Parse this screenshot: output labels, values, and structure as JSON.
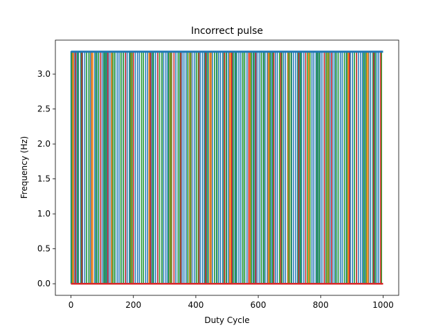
{
  "chart_data": {
    "type": "line",
    "title": "Incorrect pulse",
    "xlabel": "Duty Cycle",
    "ylabel": "Frequency (Hz)",
    "xlim": [
      -50,
      1050
    ],
    "ylim": [
      -0.166,
      3.486
    ],
    "xticks": [
      0,
      200,
      400,
      600,
      800,
      1000
    ],
    "xtick_labels": [
      "0",
      "200",
      "400",
      "600",
      "800",
      "1000"
    ],
    "yticks": [
      0.0,
      0.5,
      1.0,
      1.5,
      2.0,
      2.5,
      3.0
    ],
    "ytick_labels": [
      "0.0",
      "0.5",
      "1.0",
      "1.5",
      "2.0",
      "2.5",
      "3.0"
    ],
    "grid": false,
    "legend": "none",
    "high_level": 3.32,
    "low_level": 0.0,
    "series": [
      {
        "color": "#1f77b4",
        "rising_edges": [
          0,
          12,
          24,
          37,
          50,
          63,
          76,
          89,
          102,
          115,
          128,
          141,
          154,
          167,
          180,
          193,
          206,
          219,
          232,
          245,
          258,
          271,
          284,
          297,
          310,
          323,
          336,
          349,
          362,
          375,
          388,
          401,
          414,
          427,
          440,
          453,
          466,
          479,
          492,
          505,
          518,
          531,
          544,
          557,
          570,
          583,
          596,
          609,
          622,
          635,
          648,
          661,
          674,
          687,
          700,
          713,
          726,
          739,
          752,
          765,
          778,
          791,
          804,
          817,
          830,
          843,
          856,
          869,
          882,
          895,
          908,
          921,
          934,
          947,
          960,
          973,
          986
        ],
        "falling_edges": [
          7,
          19,
          31,
          44,
          57,
          70,
          83,
          96,
          109,
          122,
          135,
          148,
          161,
          174,
          187,
          200,
          213,
          226,
          239,
          252,
          265,
          278,
          291,
          304,
          317,
          330,
          343,
          356,
          369,
          382,
          395,
          408,
          421,
          434,
          447,
          460,
          473,
          486,
          499,
          512,
          525,
          538,
          551,
          564,
          577,
          590,
          603,
          616,
          629,
          642,
          655,
          668,
          681,
          694,
          707,
          720,
          733,
          746,
          759,
          772,
          785,
          798,
          811,
          824,
          837,
          850,
          863,
          876,
          889,
          902,
          915,
          928,
          941,
          954,
          967,
          980,
          993
        ]
      },
      {
        "color": "#ff7f0e",
        "rising_edges": [
          4,
          66,
          130,
          190,
          250,
          318,
          380,
          445,
          508,
          570,
          632,
          695,
          760,
          822,
          885,
          948
        ],
        "falling_edges": [
          8,
          70,
          134,
          194,
          254,
          322,
          384,
          449,
          512,
          574,
          636,
          699,
          764,
          826,
          889,
          952
        ]
      },
      {
        "color": "#2ca02c",
        "rising_edges": [
          2,
          33,
          58,
          88,
          112,
          140,
          168,
          196,
          232,
          262,
          292,
          320,
          350,
          382,
          408,
          438,
          468,
          497,
          528,
          556,
          586,
          618,
          646,
          676,
          705,
          736,
          766,
          795,
          824,
          856,
          884,
          915,
          945,
          975
        ],
        "falling_edges": [
          22,
          50,
          80,
          106,
          134,
          160,
          190,
          226,
          255,
          284,
          313,
          344,
          374,
          402,
          430,
          460,
          490,
          520,
          550,
          578,
          610,
          638,
          668,
          698,
          728,
          758,
          788,
          818,
          848,
          876,
          908,
          938,
          968,
          995
        ]
      },
      {
        "color": "#d62728",
        "rising_edges": [
          15,
          95,
          175,
          255,
          330,
          410,
          492,
          570,
          650,
          730,
          812,
          892,
          970
        ],
        "falling_edges": [
          35,
          118,
          200,
          278,
          352,
          432,
          515,
          592,
          672,
          752,
          835,
          915,
          992
        ]
      }
    ]
  }
}
